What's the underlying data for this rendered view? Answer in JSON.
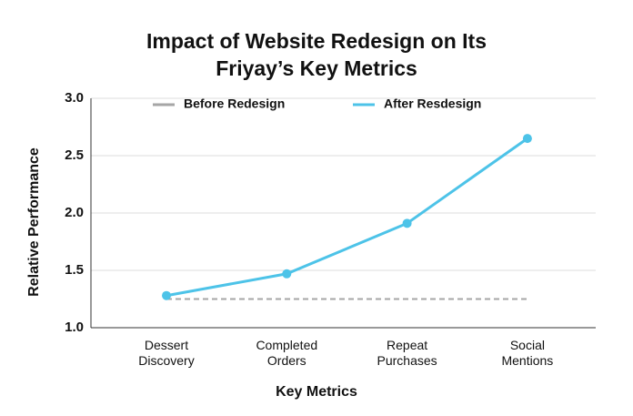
{
  "chart_data": {
    "type": "line",
    "title": "Impact of Website Redesign on Its Friyay’s Key Metrics",
    "x_label": "Key Metrics",
    "y_label": "Relative Performance",
    "categories": [
      "Dessert Discovery",
      "Completed Orders",
      "Repeat Purchases",
      "Social Mentions"
    ],
    "series": [
      {
        "name": "Before Redesign",
        "color": "#a6a6a6",
        "dashed": true,
        "markers": false,
        "values": [
          1.25,
          1.25,
          1.25,
          1.25
        ]
      },
      {
        "name": "After Resdesign",
        "color": "#4dc3e8",
        "dashed": false,
        "markers": true,
        "values": [
          1.28,
          1.47,
          1.91,
          2.65
        ]
      }
    ],
    "ylim": [
      1.0,
      3.0
    ],
    "yticks": [
      {
        "value": 1.0,
        "label": "1.0"
      },
      1.5,
      {
        "value": 2.0,
        "label": "2.0"
      },
      2.5,
      {
        "value": 3.0,
        "label": "3.0"
      }
    ],
    "grid": true
  }
}
